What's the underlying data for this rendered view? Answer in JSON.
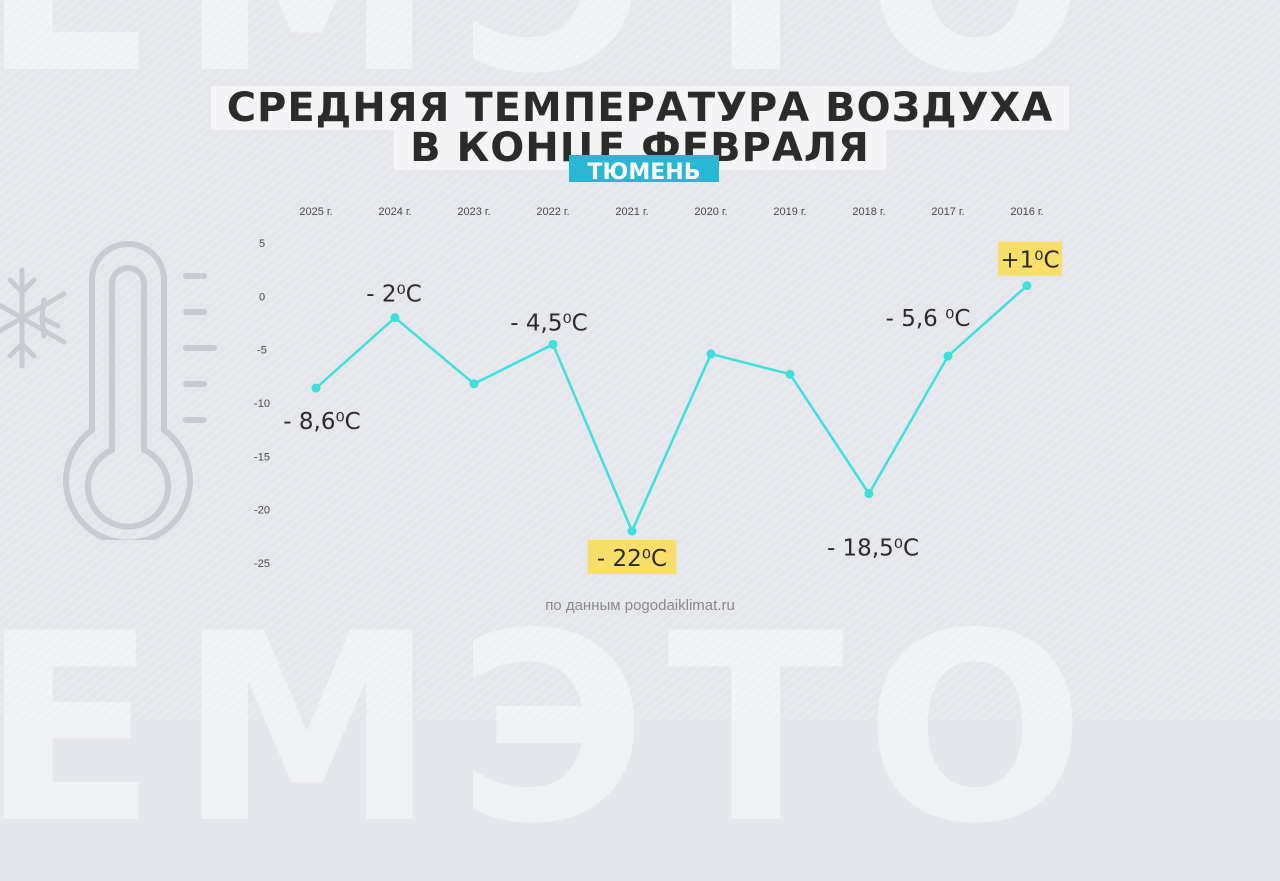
{
  "title_line1": "СРЕДНЯЯ ТЕМПЕРАТУРА ВОЗДУХА",
  "title_line2": "В КОНЦЕ ФЕВРАЛЯ",
  "city": "ТЮМЕНЬ",
  "source": "по данным pogodaiklimat.ru",
  "colors": {
    "line": "#3ee0dc",
    "highlight": "#f7df6a",
    "badge": "#29b8d3",
    "background": "#e4e6eb"
  },
  "icons": [
    "snowflake-icon",
    "thermometer-icon"
  ],
  "chart_data": {
    "type": "line",
    "title": "СРЕДНЯЯ ТЕМПЕРАТУРА ВОЗДУХА В КОНЦЕ ФЕВРАЛЯ",
    "subtitle": "ТЮМЕНЬ",
    "categories": [
      "2025 г.",
      "2024 г.",
      "2023 г.",
      "2022 г.",
      "2021 г.",
      "2020 г.",
      "2019 г.",
      "2018 г.",
      "2017 г.",
      "2016 г."
    ],
    "series": [
      {
        "values": [
          -8.6,
          -2,
          -8.2,
          -4.5,
          -22,
          -5.4,
          -7.3,
          -18.5,
          -5.6,
          1
        ]
      }
    ],
    "ylim": [
      -25,
      5
    ],
    "yticks": [
      5,
      0,
      -5,
      -10,
      -15,
      -20,
      -25
    ],
    "xlabel": "",
    "ylabel": "",
    "x_axis_position": "top",
    "grid": false,
    "data_labels": [
      {
        "index": 0,
        "text": "- 8,6⁰C",
        "highlight": false
      },
      {
        "index": 1,
        "text": "- 2⁰C",
        "highlight": false
      },
      {
        "index": 3,
        "text": "- 4,5⁰C",
        "highlight": false
      },
      {
        "index": 4,
        "text": "- 22⁰C",
        "highlight": true
      },
      {
        "index": 7,
        "text": "- 18,5⁰C",
        "highlight": false
      },
      {
        "index": 8,
        "text": "- 5,6 ⁰C",
        "highlight": false
      },
      {
        "index": 9,
        "text": "+1⁰C",
        "highlight": true
      }
    ]
  }
}
